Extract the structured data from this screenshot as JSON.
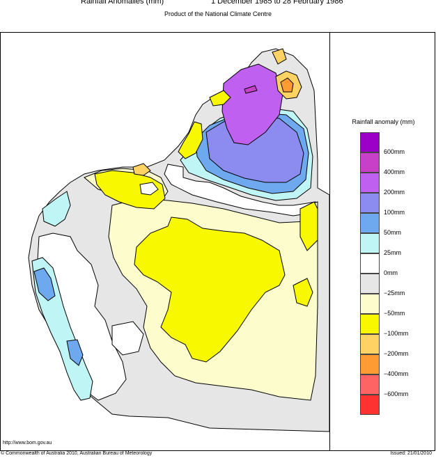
{
  "header": {
    "title_left": "Rainfall Anomalies (mm)",
    "title_right": "1 December 1985 to 28 February 1986",
    "subtitle": "Product of the National Climate Centre"
  },
  "legend": {
    "title": "Rainfall anomaly (mm)",
    "colors": [
      "#9c00c8",
      "#c840c8",
      "#c060f0",
      "#8c8cf0",
      "#6ea8ee",
      "#bff5f5",
      "#ffffff",
      "#e6e6e6",
      "#fcfccc",
      "#f8f800",
      "#ffd264",
      "#ff9b32",
      "#ff6464",
      "#ff3232"
    ],
    "labels": [
      "600mm",
      "400mm",
      "200mm",
      "100mm",
      "50mm",
      "25mm",
      "0mm",
      "−25mm",
      "−50mm",
      "−100mm",
      "−200mm",
      "−400mm",
      "−600mm"
    ]
  },
  "footer": {
    "url": "http://www.bom.gov.au",
    "copyright": "© Commonwealth of Australia 2010, Australian Bureau of Meteorology",
    "issued": "Issued: 21/01/2010"
  }
}
